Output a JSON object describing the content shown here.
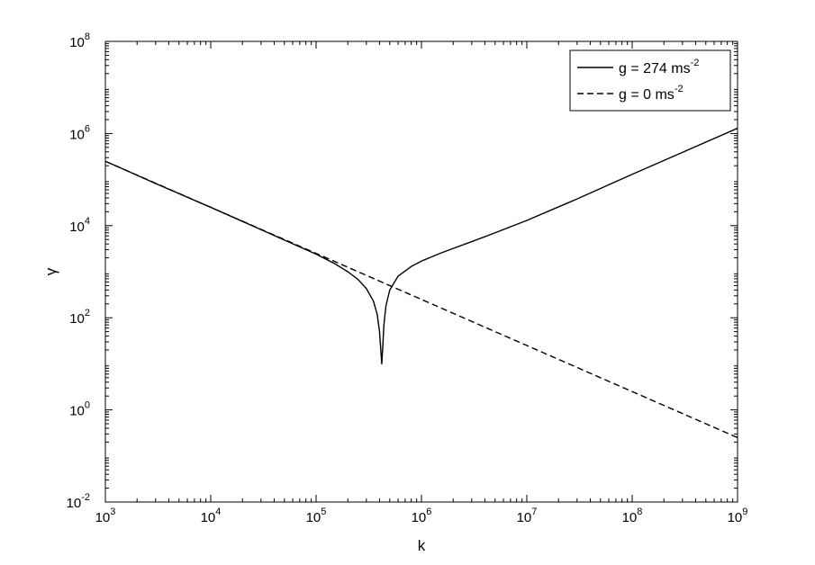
{
  "chart_data": {
    "type": "line",
    "title": "",
    "xlabel": "k",
    "ylabel": "γ",
    "x_scale": "log",
    "y_scale": "log",
    "xlim": [
      1000,
      1000000000
    ],
    "ylim": [
      0.01,
      100000000
    ],
    "x_ticks": [
      {
        "base": "10",
        "exp": "3",
        "value": 1000
      },
      {
        "base": "10",
        "exp": "4",
        "value": 10000
      },
      {
        "base": "10",
        "exp": "5",
        "value": 100000
      },
      {
        "base": "10",
        "exp": "6",
        "value": 1000000
      },
      {
        "base": "10",
        "exp": "7",
        "value": 10000000
      },
      {
        "base": "10",
        "exp": "8",
        "value": 100000000
      },
      {
        "base": "10",
        "exp": "9",
        "value": 1000000000
      }
    ],
    "y_ticks": [
      {
        "base": "10",
        "exp": "-2",
        "value": 0.01
      },
      {
        "base": "10",
        "exp": "0",
        "value": 1
      },
      {
        "base": "10",
        "exp": "2",
        "value": 100
      },
      {
        "base": "10",
        "exp": "4",
        "value": 10000
      },
      {
        "base": "10",
        "exp": "6",
        "value": 1000000
      },
      {
        "base": "10",
        "exp": "8",
        "value": 100000000
      }
    ],
    "grid": false,
    "legend_position": "top-right",
    "series": [
      {
        "name": "g = 274 ms",
        "name_exp": "-2",
        "line_style": "solid",
        "color": "#000000",
        "x": [
          1000,
          3000,
          10000,
          30000,
          100000,
          150000,
          200000,
          250000,
          300000,
          350000,
          380000,
          400000,
          420000,
          430000,
          440000,
          460000,
          500000,
          600000,
          800000,
          1000000,
          1500000,
          2000000,
          3000000,
          5000000,
          10000000,
          30000000,
          100000000,
          300000000,
          1000000000
        ],
        "y": [
          250000,
          82000,
          25000,
          8200,
          2400,
          1500,
          1000,
          680,
          430,
          230,
          120,
          50,
          10,
          25,
          70,
          180,
          400,
          800,
          1300,
          1700,
          2500,
          3200,
          4500,
          7000,
          13000,
          38000,
          130000,
          390000,
          1300000
        ]
      },
      {
        "name": "g = 0 ms",
        "name_exp": "-2",
        "line_style": "dashed",
        "color": "#000000",
        "x": [
          1000,
          10000,
          100000,
          1000000,
          10000000,
          100000000,
          1000000000
        ],
        "y": [
          250000,
          25000,
          2500,
          250,
          25,
          2.5,
          0.25
        ]
      }
    ]
  }
}
